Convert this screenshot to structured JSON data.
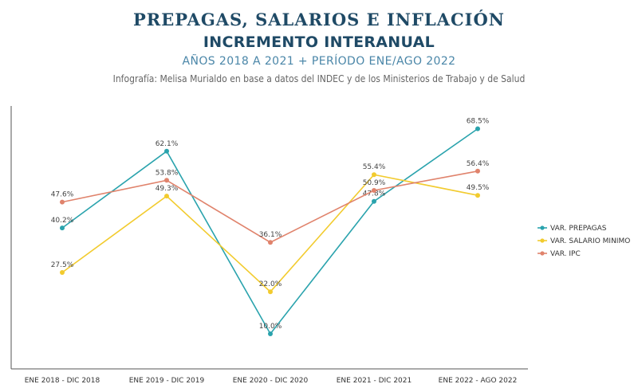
{
  "header": {
    "title": "PREPAGAS, SALARIOS E INFLACIÓN",
    "subtitle": "INCREMENTO INTERANUAL",
    "years": "AÑOS 2018 A 2021 + PERÍODO ENE/AGO 2022",
    "credit": "Infografía: Melisa Murialdo en base a datos del INDEC y de los Ministerios de Trabajo y de Salud"
  },
  "chart_data": {
    "type": "line",
    "title": "PREPAGAS, SALARIOS E INFLACIÓN",
    "subtitle": "INCREMENTO INTERANUAL",
    "categories": [
      "ENE 2018 - DIC 2018",
      "ENE 2019 - DIC 2019",
      "ENE 2020 - DIC 2020",
      "ENE 2021 - DIC 2021",
      "ENE 2022 - AGO 2022"
    ],
    "series": [
      {
        "name": "VAR. PREPAGAS",
        "color": "#2aa3ad",
        "values": [
          40.2,
          62.1,
          10.0,
          47.8,
          68.5
        ],
        "labels": [
          "40.2%",
          "62.1%",
          "10.0%",
          "47.8%",
          "68.5%"
        ]
      },
      {
        "name": "VAR. SALARIO MINIMO",
        "color": "#f2cb2e",
        "values": [
          27.5,
          49.3,
          22.0,
          55.4,
          49.5
        ],
        "labels": [
          "27.5%",
          "49.3%",
          "22.0%",
          "55.4%",
          "49.5%"
        ]
      },
      {
        "name": "VAR. IPC",
        "color": "#e0836c",
        "values": [
          47.6,
          53.8,
          36.1,
          50.9,
          56.4
        ],
        "labels": [
          "47.6%",
          "53.8%",
          "36.1%",
          "50.9%",
          "56.4%"
        ]
      }
    ],
    "xlabel": "",
    "ylabel": "",
    "ylim": [
      0,
      75
    ],
    "grid": false,
    "legend": "right"
  }
}
